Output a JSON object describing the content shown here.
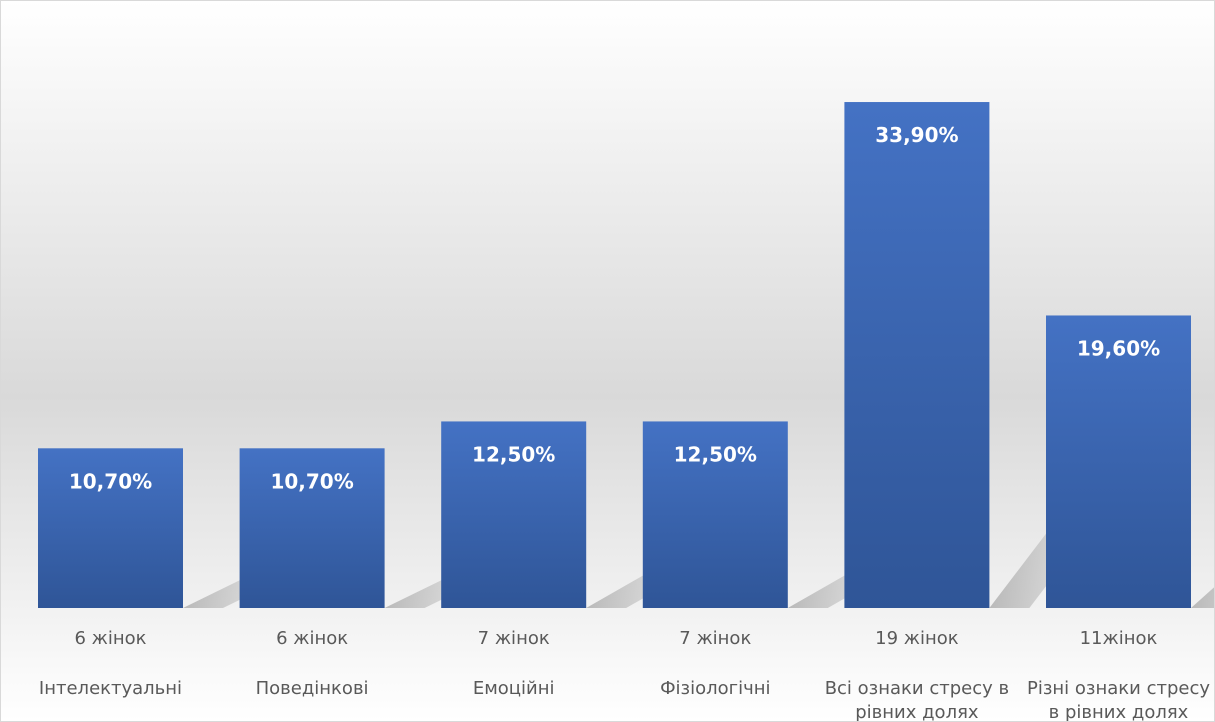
{
  "chart_data": {
    "type": "bar",
    "title": "",
    "xlabel": "",
    "ylabel": "",
    "ylim": [
      0,
      40
    ],
    "grid": false,
    "legend": "none",
    "categories": [
      {
        "count": "6 жінок",
        "name": [
          "Інтелектуальні"
        ]
      },
      {
        "count": "6 жінок",
        "name": [
          "Поведінкові"
        ]
      },
      {
        "count": "7 жінок",
        "name": [
          "Емоційні"
        ]
      },
      {
        "count": "7 жінок",
        "name": [
          "Фізіологічні"
        ]
      },
      {
        "count": "19 жінок",
        "name": [
          "Всі ознаки стресу в",
          "рівних долях"
        ]
      },
      {
        "count": "11жінок",
        "name": [
          "Різні ознаки стресу",
          "в рівних долях"
        ]
      }
    ],
    "values": [
      10.7,
      10.7,
      12.5,
      12.5,
      33.9,
      19.6
    ],
    "value_labels": [
      "10,70%",
      "10,70%",
      "12,50%",
      "12,50%",
      "33,90%",
      "19,60%"
    ]
  },
  "colors": {
    "bar_top": "#4472c4",
    "bar_bottom": "#2f5597",
    "label": "#ffffff",
    "category_text": "#595959",
    "background_top": "#ffffff",
    "background_mid": "#d9d9d9"
  }
}
